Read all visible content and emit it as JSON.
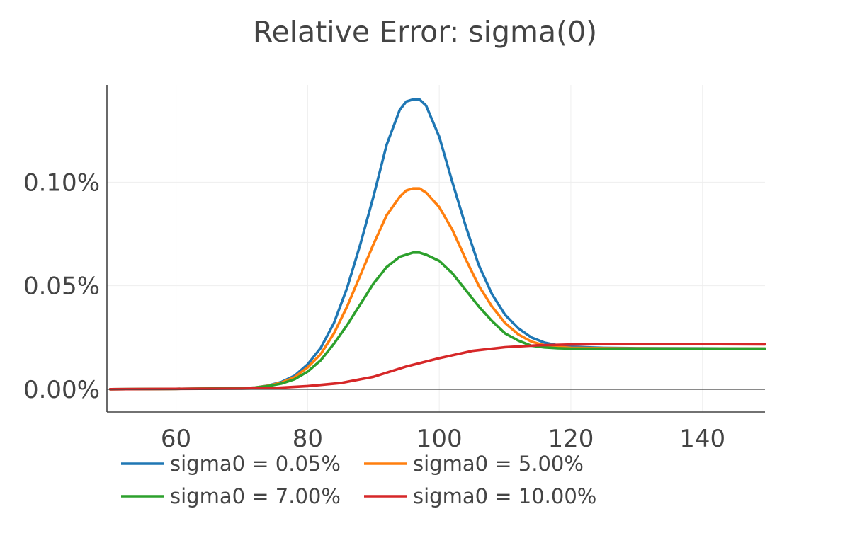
{
  "chart_data": {
    "type": "line",
    "title": "Relative Error: sigma(0)",
    "xlabel": "",
    "ylabel": "",
    "xlim": [
      49.5,
      149.5
    ],
    "ylim": [
      -0.00011,
      0.00147
    ],
    "x_ticks": [
      {
        "value": 60,
        "label": "60"
      },
      {
        "value": 80,
        "label": "80"
      },
      {
        "value": 100,
        "label": "100"
      },
      {
        "value": 120,
        "label": "120"
      },
      {
        "value": 140,
        "label": "140"
      }
    ],
    "y_ticks": [
      {
        "value": 0,
        "label": "0.00%"
      },
      {
        "value": 0.0005,
        "label": "0.05%"
      },
      {
        "value": 0.001,
        "label": "0.10%"
      }
    ],
    "grid": true,
    "legend_position": "bottom-left",
    "series": [
      {
        "name": "sigma0 = 0.05%",
        "color": "#1f77b4",
        "x": [
          50,
          60,
          70,
          72,
          74,
          76,
          78,
          80,
          82,
          84,
          86,
          88,
          90,
          92,
          94,
          95,
          96,
          97,
          98,
          100,
          102,
          104,
          106,
          108,
          110,
          112,
          114,
          116,
          118,
          120,
          125,
          130,
          140,
          150
        ],
        "y": [
          0,
          2e-06,
          5e-06,
          8e-06,
          1.8e-05,
          3.5e-05,
          6.5e-05,
          0.00012,
          0.0002,
          0.00032,
          0.00049,
          0.0007,
          0.00093,
          0.00118,
          0.00135,
          0.00139,
          0.0014,
          0.0014,
          0.00137,
          0.00122,
          0.001,
          0.00079,
          0.0006,
          0.00046,
          0.00036,
          0.000295,
          0.00025,
          0.000225,
          0.000212,
          0.000205,
          0.0002,
          0.000198,
          0.000197,
          0.000196
        ]
      },
      {
        "name": "sigma0 = 5.00%",
        "color": "#ff7f0e",
        "x": [
          50,
          60,
          70,
          72,
          74,
          76,
          78,
          80,
          82,
          84,
          86,
          88,
          90,
          92,
          94,
          95,
          96,
          97,
          98,
          100,
          102,
          104,
          106,
          108,
          110,
          112,
          114,
          116,
          118,
          120,
          125,
          130,
          140,
          150
        ],
        "y": [
          0,
          2e-06,
          5e-06,
          8e-06,
          1.7e-05,
          3.2e-05,
          5.8e-05,
          0.000105,
          0.00017,
          0.00027,
          0.0004,
          0.00055,
          0.0007,
          0.00084,
          0.00093,
          0.00096,
          0.00097,
          0.00097,
          0.00095,
          0.00088,
          0.00077,
          0.00063,
          0.0005,
          0.0004,
          0.00032,
          0.000265,
          0.00023,
          0.000212,
          0.000205,
          0.0002,
          0.000198,
          0.000197,
          0.000196,
          0.000196
        ]
      },
      {
        "name": "sigma0 = 7.00%",
        "color": "#2ca02c",
        "x": [
          50,
          60,
          70,
          72,
          74,
          76,
          78,
          80,
          82,
          84,
          86,
          88,
          90,
          92,
          94,
          96,
          97,
          98,
          100,
          102,
          104,
          106,
          108,
          110,
          112,
          114,
          116,
          118,
          120,
          125,
          130,
          140,
          150
        ],
        "y": [
          0,
          2e-06,
          5e-06,
          8e-06,
          1.5e-05,
          2.7e-05,
          4.8e-05,
          8.5e-05,
          0.00014,
          0.00022,
          0.00031,
          0.00041,
          0.00051,
          0.00059,
          0.00064,
          0.00066,
          0.00066,
          0.00065,
          0.00062,
          0.00056,
          0.00048,
          0.0004,
          0.00033,
          0.00027,
          0.000235,
          0.00021,
          0.000202,
          0.000198,
          0.000196,
          0.000196,
          0.000196,
          0.000196,
          0.000196
        ]
      },
      {
        "name": "sigma0 = 10.00%",
        "color": "#d62728",
        "x": [
          50,
          60,
          70,
          75,
          80,
          85,
          90,
          95,
          100,
          105,
          110,
          115,
          120,
          125,
          130,
          140,
          150
        ],
        "y": [
          0,
          2e-06,
          3e-06,
          6e-06,
          1.5e-05,
          3e-05,
          6e-05,
          0.00011,
          0.00015,
          0.000185,
          0.000203,
          0.000212,
          0.000216,
          0.000218,
          0.000218,
          0.000218,
          0.000217
        ]
      }
    ]
  }
}
